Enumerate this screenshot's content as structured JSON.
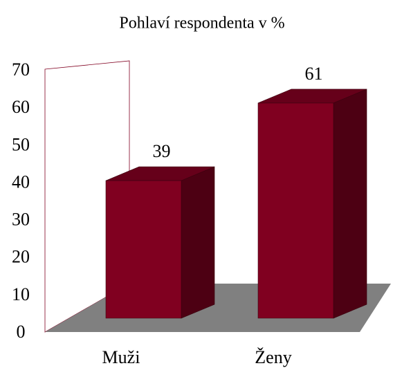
{
  "chart_data": {
    "type": "bar",
    "title": "Pohlaví respondenta v %",
    "categories": [
      "Muži",
      "Ženy"
    ],
    "values": [
      39,
      61
    ],
    "color": "#800020",
    "ylim": [
      0,
      70
    ],
    "yticks": [
      0,
      10,
      20,
      30,
      40,
      50,
      60,
      70
    ]
  }
}
